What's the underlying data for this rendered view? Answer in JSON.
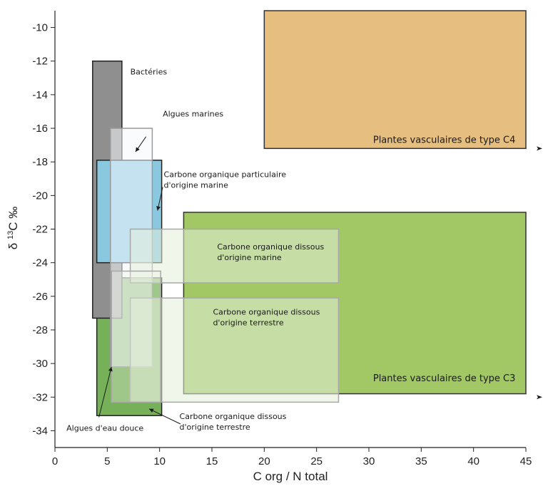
{
  "chart_data": {
    "type": "range-boxes",
    "xlabel": "C org / N total",
    "ylabel_prefix": "δ",
    "ylabel_sup": "13",
    "ylabel_suffix": "C ‰",
    "xlim": [
      0,
      45
    ],
    "ylim": [
      -35,
      -9
    ],
    "xticks": [
      0,
      5,
      10,
      15,
      20,
      25,
      30,
      35,
      40,
      45
    ],
    "yticks": [
      -10,
      -12,
      -14,
      -16,
      -18,
      -20,
      -22,
      -24,
      -26,
      -28,
      -30,
      -32,
      -34
    ],
    "grid": false,
    "regions": [
      {
        "key": "c4",
        "x": [
          20,
          45
        ],
        "y": [
          -17.2,
          -9
        ],
        "fill": "#e6bf80",
        "stroke": "#333333",
        "opacity": 1,
        "label": "Plantes vasculaires de type C4",
        "label_at": [
          30.4,
          -17.2
        ]
      },
      {
        "key": "c3",
        "x": [
          12.3,
          45
        ],
        "y": [
          -31.8,
          -21
        ],
        "fill": "#a1c864",
        "stroke": "#333333",
        "opacity": 1,
        "label": "Plantes vasculaires de type C3",
        "label_at": [
          30.4,
          -31.4
        ]
      },
      {
        "key": "freshwater",
        "x": [
          4,
          10.2
        ],
        "y": [
          -33.1,
          -24.9
        ],
        "fill": "#76b058",
        "stroke": "#222222",
        "opacity": 1
      },
      {
        "key": "bacteria",
        "x": [
          3.6,
          6.4
        ],
        "y": [
          -27.3,
          -12
        ],
        "fill": "#8f8f8f",
        "stroke": "#222222",
        "opacity": 1
      },
      {
        "key": "poc_marine",
        "x": [
          4,
          10.2
        ],
        "y": [
          -24,
          -17.9
        ],
        "fill": "#8ac8e0",
        "stroke": "#222222",
        "opacity": 1
      },
      {
        "key": "marine_algae",
        "x": [
          5.3,
          9.3
        ],
        "y": [
          -30.2,
          -16
        ],
        "fill": "#f4f7fb",
        "stroke": "#9a9a9a",
        "opacity": 0.55
      },
      {
        "key": "doc_marine",
        "x": [
          7.2,
          27.1
        ],
        "y": [
          -25.2,
          -22
        ],
        "fill": "#e6eedb",
        "stroke": "#a8a8a8",
        "opacity": 0.55
      },
      {
        "key": "doc_terrestrial",
        "x": [
          7.2,
          27.1
        ],
        "y": [
          -32.3,
          -26.1
        ],
        "fill": "#e6eedb",
        "stroke": "#a8a8a8",
        "opacity": 0.55
      },
      {
        "key": "doc_terrestrial_small",
        "x": [
          5.4,
          10.1
        ],
        "y": [
          -32.3,
          -24.5
        ],
        "fill": "#eef3e6",
        "stroke": "#a8a8a8",
        "opacity": 0.35
      }
    ],
    "annotations": [
      {
        "key": "bacteria",
        "lines": [
          "Bactéries"
        ],
        "at": [
          7.2,
          -12.8
        ]
      },
      {
        "key": "marine_algae",
        "lines": [
          "Algues marines"
        ],
        "at": [
          10.3,
          -15.3
        ]
      },
      {
        "key": "poc_marine",
        "lines": [
          "Carbone organique particulaire",
          "d'origine marine"
        ],
        "at": [
          10.4,
          -18.9
        ]
      },
      {
        "key": "doc_marine",
        "lines": [
          "Carbone organique dissous",
          "d'origine marine"
        ],
        "at": [
          15.5,
          -23.2
        ]
      },
      {
        "key": "doc_terrestrial_in_box",
        "lines": [
          "Carbone organique dissous",
          "d'origine terrestre"
        ],
        "at": [
          15.1,
          -27.1
        ]
      },
      {
        "key": "doc_terrestrial_below",
        "lines": [
          "Carbone organique dissous",
          "d'origine terrestre"
        ],
        "at": [
          11.9,
          -33.3
        ]
      },
      {
        "key": "freshwater_algae",
        "lines": [
          "Algues d'eau douce"
        ],
        "at": [
          1.1,
          -34.0
        ]
      }
    ],
    "arrows": [
      {
        "from": [
          8.7,
          -16.5
        ],
        "to": [
          7.7,
          -17.4
        ]
      },
      {
        "from": [
          10.3,
          -19.5
        ],
        "to": [
          9.8,
          -20.9
        ]
      },
      {
        "from": [
          4.2,
          -33.2
        ],
        "to": [
          5.4,
          -30.2
        ]
      },
      {
        "from": [
          12.0,
          -33.6
        ],
        "to": [
          9.0,
          -32.7
        ]
      }
    ],
    "edge_markers_y": [
      -17.2,
      -32.0
    ]
  }
}
